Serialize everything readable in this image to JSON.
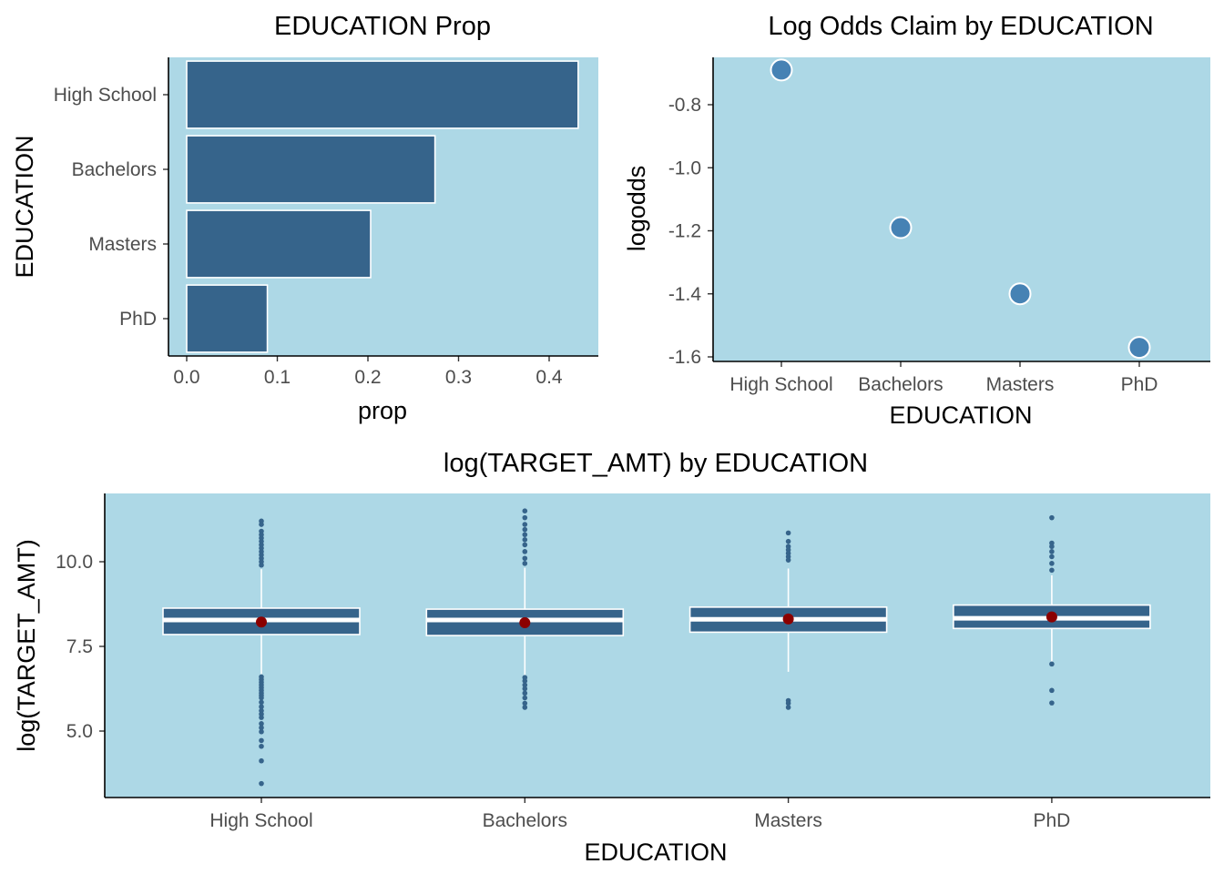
{
  "chart_data": [
    {
      "type": "bar",
      "orientation": "horizontal",
      "title": "EDUCATION Prop",
      "xlabel": "prop",
      "ylabel": "EDUCATION",
      "categories": [
        "High School",
        "Bachelors",
        "Masters",
        "PhD"
      ],
      "values": [
        0.432,
        0.274,
        0.203,
        0.089
      ],
      "xlim": [
        0,
        0.45
      ],
      "xticks": [
        "0.0",
        "0.1",
        "0.2",
        "0.3",
        "0.4"
      ],
      "grid": false,
      "colors": {
        "panel": "#add8e6",
        "bar": "#36648b",
        "bar_outline": "#ffffff"
      }
    },
    {
      "type": "scatter",
      "title": "Log Odds Claim by EDUCATION",
      "xlabel": "EDUCATION",
      "ylabel": "logodds",
      "categories": [
        "High School",
        "Bachelors",
        "Masters",
        "PhD"
      ],
      "values": [
        -0.69,
        -1.19,
        -1.4,
        -1.57
      ],
      "ylim": [
        -1.6,
        -0.68
      ],
      "yticks": [
        "-0.8",
        "-1.0",
        "-1.2",
        "-1.4",
        "-1.6"
      ],
      "grid": false,
      "colors": {
        "panel": "#add8e6",
        "point": "#4682b4",
        "point_outline": "#ffffff"
      }
    },
    {
      "type": "box",
      "title": "log(TARGET_AMT) by EDUCATION",
      "xlabel": "EDUCATION",
      "ylabel": "log(TARGET_AMT)",
      "categories": [
        "High School",
        "Bachelors",
        "Masters",
        "PhD"
      ],
      "ylim": [
        3.0,
        12.0
      ],
      "yticks": [
        "5.0",
        "7.5",
        "10.0"
      ],
      "grid": false,
      "boxes": [
        {
          "category": "High School",
          "q1": 7.85,
          "median": 8.28,
          "q3": 8.63,
          "whisker_low": 6.68,
          "whisker_high": 9.78,
          "mean": 8.22,
          "outliers": [
            3.45,
            4.12,
            4.55,
            4.72,
            4.98,
            5.1,
            5.22,
            5.4,
            5.5,
            5.6,
            5.72,
            5.85,
            5.98,
            6.05,
            6.12,
            6.2,
            6.28,
            6.36,
            6.44,
            6.52,
            6.6,
            9.9,
            10.0,
            10.1,
            10.2,
            10.3,
            10.4,
            10.5,
            10.6,
            10.7,
            10.8,
            10.9,
            11.1,
            11.2
          ]
        },
        {
          "category": "Bachelors",
          "q1": 7.82,
          "median": 8.28,
          "q3": 8.6,
          "whisker_low": 6.65,
          "whisker_high": 9.82,
          "mean": 8.2,
          "outliers": [
            5.7,
            5.82,
            5.98,
            6.12,
            6.25,
            6.36,
            6.48,
            6.58,
            9.95,
            10.1,
            10.3,
            10.5,
            10.65,
            10.8,
            10.95,
            11.1,
            11.3,
            11.5
          ]
        },
        {
          "category": "Masters",
          "q1": 7.92,
          "median": 8.3,
          "q3": 8.66,
          "whisker_low": 6.75,
          "whisker_high": 9.8,
          "mean": 8.31,
          "outliers": [
            5.7,
            5.82,
            5.9,
            10.05,
            10.15,
            10.25,
            10.35,
            10.45,
            10.6,
            10.85
          ]
        },
        {
          "category": "PhD",
          "q1": 8.03,
          "median": 8.33,
          "q3": 8.72,
          "whisker_low": 7.05,
          "whisker_high": 9.6,
          "mean": 8.37,
          "outliers": [
            5.83,
            6.2,
            6.98,
            9.75,
            9.95,
            10.15,
            10.3,
            10.45,
            10.55,
            11.3
          ]
        }
      ],
      "colors": {
        "panel": "#add8e6",
        "box": "#36648b",
        "box_outline": "#ffffff",
        "outlier": "#36648b",
        "mean_point": "#8b0000"
      }
    }
  ]
}
